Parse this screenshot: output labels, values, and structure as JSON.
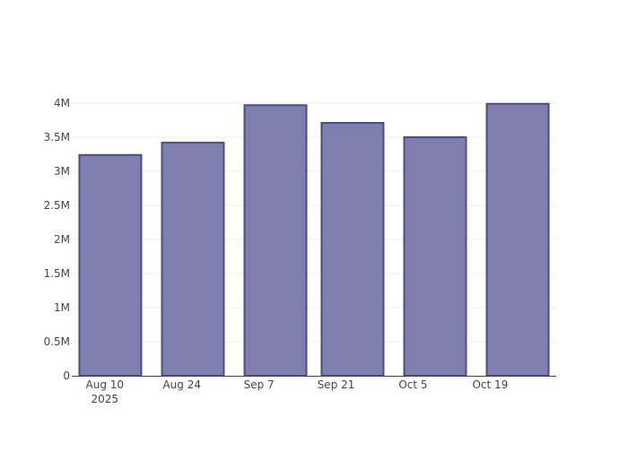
{
  "chart_data": {
    "type": "bar",
    "title": "",
    "xlabel": "",
    "ylabel": "",
    "x": [
      "2025-08-11",
      "2025-08-26",
      "2025-09-10",
      "2025-09-24",
      "2025-10-09",
      "2025-10-24"
    ],
    "values": [
      3240000,
      3420000,
      3970000,
      3710000,
      3500000,
      3990000
    ],
    "xlim": [
      "2025-08-04",
      "2025-10-31"
    ],
    "ylim": [
      0,
      4000000
    ],
    "x_ticks": [
      {
        "date": "2025-08-10",
        "label": "Aug 10",
        "sublabel": "2025"
      },
      {
        "date": "2025-08-24",
        "label": "Aug 24"
      },
      {
        "date": "2025-09-07",
        "label": "Sep 7"
      },
      {
        "date": "2025-09-21",
        "label": "Sep 21"
      },
      {
        "date": "2025-10-05",
        "label": "Oct 5"
      },
      {
        "date": "2025-10-19",
        "label": "Oct 19"
      }
    ],
    "y_ticks": [
      {
        "value": 0,
        "label": "0"
      },
      {
        "value": 500000,
        "label": "0.5M"
      },
      {
        "value": 1000000,
        "label": "1M"
      },
      {
        "value": 1500000,
        "label": "1.5M"
      },
      {
        "value": 2000000,
        "label": "2M"
      },
      {
        "value": 2500000,
        "label": "2.5M"
      },
      {
        "value": 3000000,
        "label": "3M"
      },
      {
        "value": 3500000,
        "label": "3.5M"
      },
      {
        "value": 4000000,
        "label": "4M"
      }
    ],
    "grid": true,
    "colors": {
      "bar_fill": "#7f7faf",
      "bar_line": "#4b4b8c",
      "grid": "#eeeeee",
      "axis": "#444444"
    }
  }
}
